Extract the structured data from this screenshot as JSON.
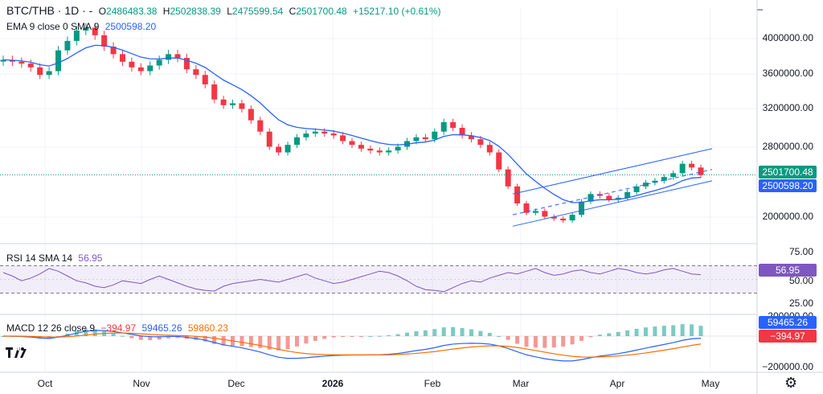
{
  "header": {
    "symbol": "BTC/THB · 1D · -",
    "open_key": "O",
    "open": "2486483.38",
    "high_key": "H",
    "high": "2502838.39",
    "low_key": "L",
    "low": "2475599.54",
    "close_key": "C",
    "close": "2501700.48",
    "change": "+15217.10 (+0.61%)",
    "minimize": "–"
  },
  "ema_legend": {
    "label": "EMA 9 close 0 SMA 9",
    "value": "2500598.20",
    "color": "#2962ff"
  },
  "rsi_legend": {
    "label": "RSI 14 SMA 14",
    "value": "56.95",
    "color": "#7e57c2"
  },
  "macd_legend": {
    "label": "MACD 12 26 close 9",
    "hist": "−394.97",
    "macd": "59465.26",
    "signal": "59860.23"
  },
  "price_axis": [
    "4000000.00",
    "3600000.00",
    "3200000.00",
    "2800000.00",
    "2000000.00"
  ],
  "price_tags": {
    "last": "2501700.48",
    "ema": "2500598.20"
  },
  "rsi_axis": [
    "75.00",
    "50.00",
    "25.00"
  ],
  "rsi_tag": "56.95",
  "macd_axis": [
    "200000.00",
    "−200000.00"
  ],
  "macd_tags": {
    "macd": "59465.26",
    "hist": "−394.97"
  },
  "time_axis": [
    {
      "label": "Oct",
      "bold": false
    },
    {
      "label": "Nov",
      "bold": false
    },
    {
      "label": "Dec",
      "bold": false
    },
    {
      "label": "2026",
      "bold": true
    },
    {
      "label": "Feb",
      "bold": false
    },
    {
      "label": "Mar",
      "bold": false
    },
    {
      "label": "Apr",
      "bold": false
    },
    {
      "label": "May",
      "bold": false
    }
  ],
  "colors": {
    "up": "#089981",
    "down": "#f23645",
    "ema": "#2962ff",
    "rsi": "#7e57c2",
    "macd_line": "#2962ff",
    "signal_line": "#ff6d00",
    "channel": "#2962ff"
  },
  "chart_data": {
    "type": "candlestick",
    "interval": "1D",
    "x_label_dates": [
      "Oct",
      "Nov",
      "Dec",
      "2026",
      "Feb",
      "Mar",
      "Apr",
      "May"
    ],
    "price_close_approx": [
      3720000,
      3700000,
      3680000,
      3640000,
      3560000,
      3600000,
      3820000,
      3920000,
      4030000,
      4060000,
      3980000,
      3860000,
      3780000,
      3700000,
      3640000,
      3600000,
      3660000,
      3720000,
      3780000,
      3740000,
      3620000,
      3560000,
      3460000,
      3300000,
      3240000,
      3260000,
      3200000,
      3080000,
      2960000,
      2800000,
      2740000,
      2820000,
      2900000,
      2940000,
      2960000,
      2940000,
      2920000,
      2860000,
      2820000,
      2780000,
      2760000,
      2740000,
      2760000,
      2800000,
      2860000,
      2900000,
      2880000,
      2960000,
      3060000,
      3000000,
      2920000,
      2880000,
      2820000,
      2740000,
      2560000,
      2380000,
      2200000,
      2100000,
      2120000,
      2060000,
      2040000,
      2020000,
      2080000,
      2220000,
      2300000,
      2280000,
      2240000,
      2260000,
      2320000,
      2380000,
      2420000,
      2440000,
      2480000,
      2520000,
      2620000,
      2580000,
      2500000
    ],
    "ema9_last": 2500598.2,
    "last_close": 2501700.48,
    "price_ylim": [
      1800000,
      4200000
    ],
    "rsi_series": [
      60,
      55,
      48,
      52,
      58,
      66,
      62,
      55,
      48,
      45,
      40,
      38,
      42,
      48,
      46,
      44,
      50,
      55,
      50,
      45,
      40,
      36,
      34,
      33,
      40,
      44,
      46,
      48,
      50,
      48,
      46,
      50,
      54,
      58,
      52,
      48,
      44,
      46,
      50,
      54,
      58,
      62,
      60,
      55,
      48,
      40,
      35,
      34,
      32,
      38,
      44,
      48,
      46,
      52,
      56,
      60,
      58,
      62,
      66,
      60,
      56,
      58,
      62,
      64,
      60,
      58,
      62,
      66,
      64,
      60,
      58,
      60,
      64,
      66,
      62,
      58,
      56.95
    ],
    "rsi_value": 56.95,
    "rsi_ylim": [
      0,
      100
    ],
    "rsi_band": [
      30,
      70
    ],
    "macd_value": 59465.26,
    "signal_value": 59860.23,
    "hist_value": -394.97
  }
}
